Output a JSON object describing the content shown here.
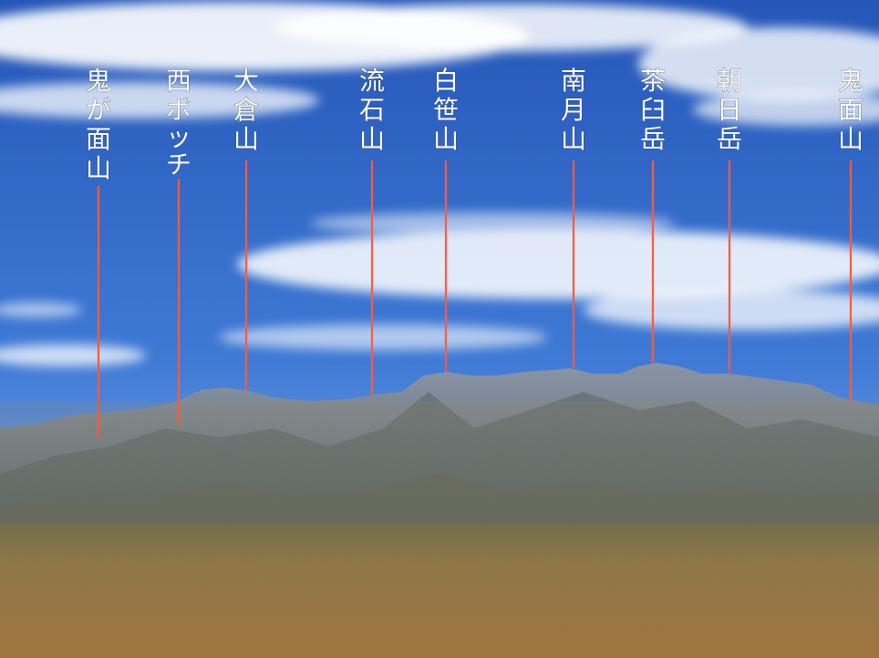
{
  "scene": {
    "sky_top_color": "#2b66c6",
    "sky_bottom_color": "#b9d2f2",
    "mountain_color": "#6f7e93",
    "forest_color": "#a07a3a"
  },
  "peaks": [
    {
      "name": "鬼が面山",
      "chars": [
        "鬼",
        "が",
        "面",
        "山"
      ]
    },
    {
      "name": "西ボッチ",
      "chars": [
        "西",
        "ボ",
        "ッ",
        "チ"
      ]
    },
    {
      "name": "大倉山",
      "chars": [
        "大",
        "倉",
        "山"
      ]
    },
    {
      "name": "流石山",
      "chars": [
        "流",
        "石",
        "山"
      ]
    },
    {
      "name": "白笹山",
      "chars": [
        "白",
        "笹",
        "山"
      ]
    },
    {
      "name": "南月山",
      "chars": [
        "南",
        "月",
        "山"
      ]
    },
    {
      "name": "茶臼岳",
      "chars": [
        "茶",
        "臼",
        "岳"
      ]
    },
    {
      "name": "朝日岳",
      "chars": [
        "朝",
        "日",
        "岳"
      ]
    },
    {
      "name": "鬼面山",
      "chars": [
        "鬼",
        "面",
        "山"
      ]
    }
  ]
}
